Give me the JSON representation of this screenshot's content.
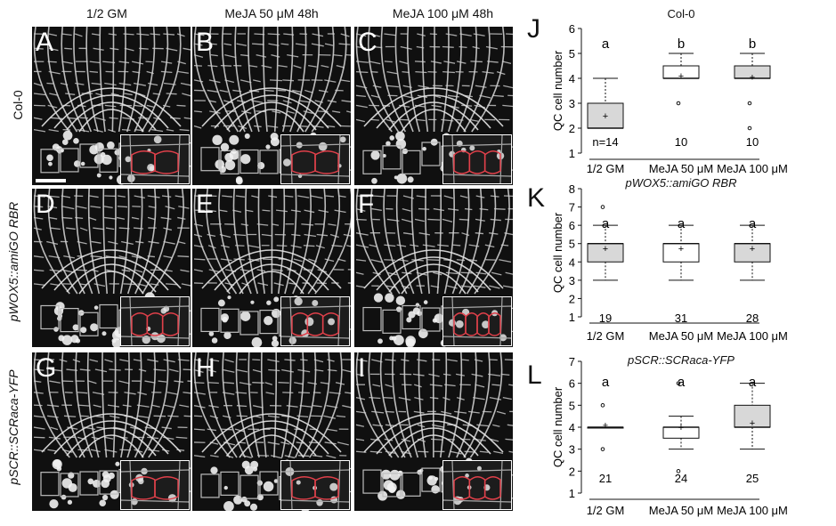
{
  "columns": [
    "1/2 GM",
    "MeJA 50 μM 48h",
    "MeJA 100 μM 48h"
  ],
  "rows": [
    "Col-0",
    "pWOX5::amiGO RBR",
    "pSCR::SCRaca-YFP"
  ],
  "panels": [
    "A",
    "B",
    "C",
    "D",
    "E",
    "F",
    "G",
    "H",
    "I"
  ],
  "colors": {
    "qc_outline": "#e0404a",
    "box_fill_gray": "#d8d8d8",
    "box_fill_white": "#ffffff"
  },
  "chart_data": [
    {
      "type": "box",
      "panel": "J",
      "title": "Col-0",
      "ylabel": "QC cell number",
      "categories": [
        "1/2 GM",
        "MeJA 50 μM",
        "MeJA 100 μM"
      ],
      "ylim": [
        1,
        6
      ],
      "yticks": [
        1,
        2,
        3,
        4,
        5,
        6
      ],
      "boxes": [
        {
          "whisker_low": 2,
          "q1": 2,
          "median": 2,
          "q3": 3,
          "whisker_high": 4,
          "mean": 2.5,
          "outliers": [],
          "fill": "gray"
        },
        {
          "whisker_low": 4,
          "q1": 4,
          "median": 4,
          "q3": 4.5,
          "whisker_high": 5,
          "mean": 4.1,
          "outliers": [
            3
          ],
          "fill": "white"
        },
        {
          "whisker_low": 4,
          "q1": 4,
          "median": 4,
          "q3": 4.5,
          "whisker_high": 5,
          "mean": 4.05,
          "outliers": [
            3,
            2
          ],
          "fill": "gray"
        }
      ],
      "letters": [
        "a",
        "b",
        "b"
      ],
      "counts": [
        "n=14",
        "10",
        "10"
      ]
    },
    {
      "type": "box",
      "panel": "K",
      "title": "pWOX5::amiGO RBR",
      "ylabel": "QC cell number",
      "categories": [
        "1/2 GM",
        "MeJA 50 μM",
        "MeJA 100 μM"
      ],
      "ylim": [
        1,
        8
      ],
      "yticks": [
        1,
        2,
        3,
        4,
        5,
        6,
        7,
        8
      ],
      "boxes": [
        {
          "whisker_low": 3,
          "q1": 4,
          "median": 5,
          "q3": 5,
          "whisker_high": 6,
          "mean": 4.75,
          "outliers": [
            7
          ],
          "fill": "gray"
        },
        {
          "whisker_low": 3,
          "q1": 4,
          "median": 5,
          "q3": 5,
          "whisker_high": 6,
          "mean": 4.75,
          "outliers": [],
          "fill": "white"
        },
        {
          "whisker_low": 3,
          "q1": 4,
          "median": 5,
          "q3": 5,
          "whisker_high": 6,
          "mean": 4.75,
          "outliers": [],
          "fill": "gray"
        }
      ],
      "letters": [
        "a",
        "a",
        "a"
      ],
      "counts": [
        "19",
        "31",
        "28"
      ]
    },
    {
      "type": "box",
      "panel": "L",
      "title": "pSCR::SCRaca-YFP",
      "ylabel": "QC cell number",
      "categories": [
        "1/2 GM",
        "MeJA 50 μM",
        "MeJA 100 μM"
      ],
      "ylim": [
        1,
        7
      ],
      "yticks": [
        1,
        2,
        3,
        4,
        5,
        6,
        7
      ],
      "boxes": [
        {
          "whisker_low": 4,
          "q1": 4,
          "median": 4,
          "q3": 4,
          "whisker_high": 4,
          "mean": 4.1,
          "outliers": [
            3,
            5
          ],
          "fill": "white"
        },
        {
          "whisker_low": 3,
          "q1": 3.5,
          "median": 4,
          "q3": 4,
          "whisker_high": 4.5,
          "mean": 4.0,
          "outliers": [
            2,
            6
          ],
          "fill": "white"
        },
        {
          "whisker_low": 3,
          "q1": 4,
          "median": 4,
          "q3": 5,
          "whisker_high": 6,
          "mean": 4.2,
          "outliers": [],
          "fill": "gray"
        }
      ],
      "letters": [
        "a",
        "a",
        "a"
      ],
      "counts": [
        "21",
        "24",
        "25"
      ]
    }
  ]
}
